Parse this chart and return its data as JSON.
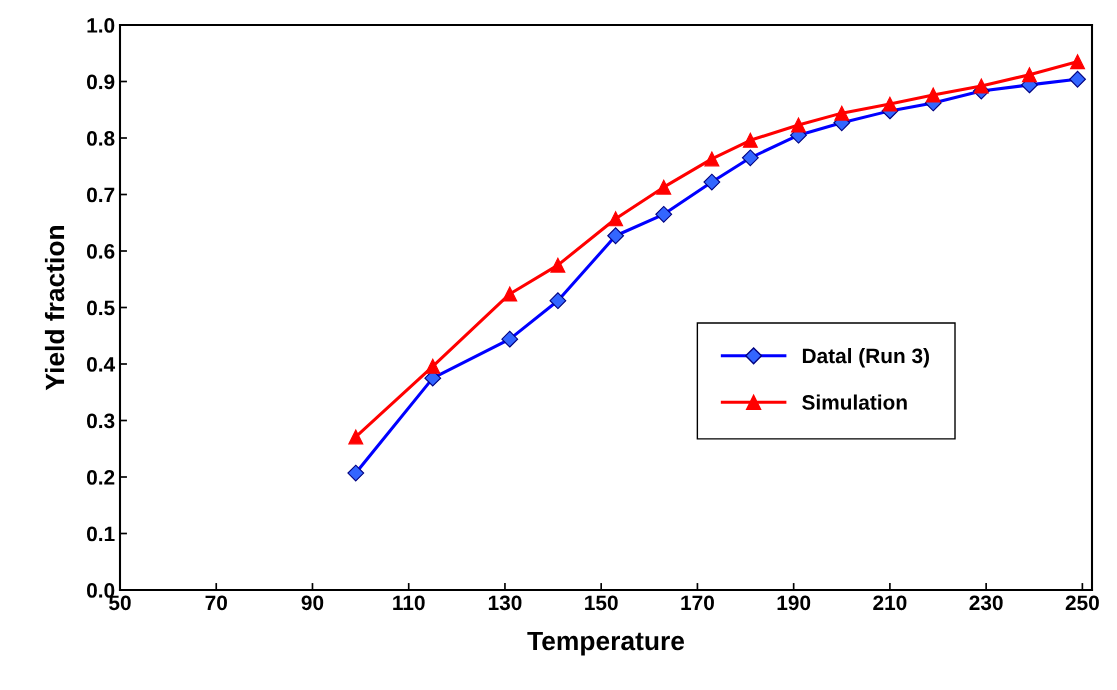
{
  "chart_data": {
    "type": "line",
    "xlabel": "Temperature",
    "ylabel": "Yield fraction",
    "x": [
      99,
      115,
      131,
      141,
      153,
      163,
      173,
      181,
      191,
      200,
      210,
      219,
      229,
      239,
      249
    ],
    "series": [
      {
        "name": "Datal (Run 3)",
        "color": "#0000ff",
        "marker": "diamond",
        "values": [
          0.207,
          0.375,
          0.444,
          0.512,
          0.627,
          0.665,
          0.722,
          0.765,
          0.805,
          0.827,
          0.848,
          0.862,
          0.883,
          0.894,
          0.904
        ]
      },
      {
        "name": "Simulation",
        "color": "#ff0000",
        "marker": "triangle",
        "values": [
          0.271,
          0.396,
          0.524,
          0.575,
          0.657,
          0.713,
          0.763,
          0.796,
          0.823,
          0.844,
          0.86,
          0.876,
          0.892,
          0.912,
          0.935
        ]
      }
    ],
    "xlim": [
      50,
      252
    ],
    "xticks": [
      50,
      70,
      90,
      110,
      130,
      150,
      170,
      190,
      210,
      230,
      250
    ],
    "ylim": [
      0,
      1.0
    ],
    "yticks": [
      {
        "value": 0,
        "label": "0.0"
      },
      0.1,
      0.2,
      0.3,
      0.4,
      0.5,
      0.6,
      0.7,
      0.8,
      0.9,
      {
        "value": 1.0,
        "label": "1.0"
      }
    ],
    "grid": false,
    "legend": "right",
    "line_style": "solid"
  }
}
